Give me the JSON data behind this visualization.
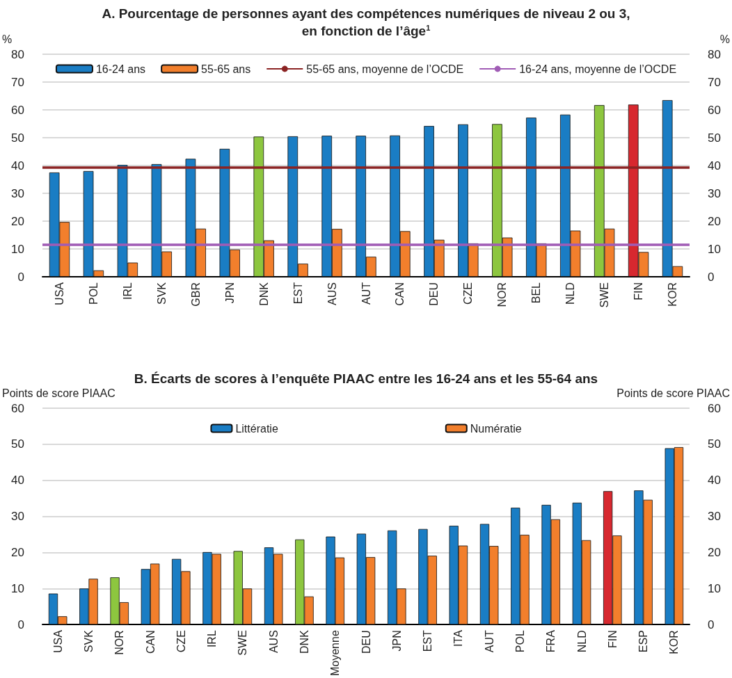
{
  "chart_data": [
    {
      "type": "bar",
      "title": "A. Pourcentage de personnes ayant des compétences numériques de niveau 2 ou 3,\nen fonction de l’âge$^{1}$",
      "ylabel": "%",
      "y2label": "%",
      "categories": [
        "USA",
        "POL",
        "IRL",
        "SVK",
        "GBR",
        "JPN",
        "DNK",
        "EST",
        "AUS",
        "AUT",
        "CAN",
        "DEU",
        "CZE",
        "NOR",
        "BEL",
        "NLD",
        "SWE",
        "FIN",
        "KOR"
      ],
      "series": [
        {
          "name": "16-24 ans",
          "color": "#1a7dc4",
          "colors": [
            "#1a7dc4",
            "#1a7dc4",
            "#1a7dc4",
            "#1a7dc4",
            "#1a7dc4",
            "#1a7dc4",
            "#8dc63f",
            "#1a7dc4",
            "#1a7dc4",
            "#1a7dc4",
            "#1a7dc4",
            "#1a7dc4",
            "#1a7dc4",
            "#8dc63f",
            "#1a7dc4",
            "#1a7dc4",
            "#8dc63f",
            "#d7282f",
            "#1a7dc4"
          ],
          "values": [
            37.5,
            38,
            40.2,
            40.5,
            42.4,
            46,
            50.4,
            50.5,
            50.7,
            50.7,
            50.8,
            54.2,
            54.8,
            54.9,
            57.2,
            58.3,
            61.7,
            61.9,
            63.5
          ]
        },
        {
          "name": "55-65 ans",
          "color": "#f27f2c",
          "values": [
            19.7,
            2.3,
            5.1,
            9.1,
            17.3,
            9.8,
            13.1,
            4.7,
            17.2,
            7.2,
            16.4,
            13.3,
            12,
            14.1,
            12,
            16.6,
            17.3,
            8.9,
            3.8
          ]
        }
      ],
      "ref_lines": [
        {
          "axis": "y",
          "value": 39.2,
          "label": "55-65 ans, moyenne de l’OCDE",
          "color": "#8b2323"
        },
        {
          "axis": "y",
          "value": 11.6,
          "label": "16-24 ans, moyenne de l’OCDE",
          "color": "#a05cb5"
        }
      ],
      "ylim": [
        0,
        80
      ],
      "yticks": [
        0,
        10,
        20,
        30,
        40,
        50,
        60,
        70,
        80
      ],
      "y2lim": [
        0,
        80
      ],
      "y2ticks": [
        0,
        10,
        20,
        30,
        40,
        50,
        60,
        70,
        80
      ],
      "grid": "y",
      "legend": "top"
    },
    {
      "type": "bar",
      "title": "B. Écarts de scores à l’enquête PIAAC entre les 16-24 ans et les 55-64 ans",
      "ylabel": "Points de score PIAAC",
      "y2label": "Points de score PIAAC",
      "categories": [
        "USA",
        "SVK",
        "NOR",
        "CAN",
        "CZE",
        "IRL",
        "SWE",
        "AUS",
        "DNK",
        "Moyenne",
        "DEU",
        "JPN",
        "EST",
        "ITA",
        "AUT",
        "POL",
        "FRA",
        "NLD",
        "FIN",
        "ESP",
        "KOR"
      ],
      "series": [
        {
          "name": "Littératie",
          "color": "#1a7dc4",
          "colors": [
            "#1a7dc4",
            "#1a7dc4",
            "#8dc63f",
            "#1a7dc4",
            "#1a7dc4",
            "#1a7dc4",
            "#8dc63f",
            "#1a7dc4",
            "#8dc63f",
            "#1a7dc4",
            "#1a7dc4",
            "#1a7dc4",
            "#1a7dc4",
            "#1a7dc4",
            "#1a7dc4",
            "#1a7dc4",
            "#1a7dc4",
            "#1a7dc4",
            "#d7282f",
            "#1a7dc4",
            "#1a7dc4"
          ],
          "values": [
            8.6,
            10,
            13.1,
            15.4,
            18.2,
            20.1,
            20.4,
            21.4,
            23.6,
            24.4,
            25.2,
            26.1,
            26.5,
            27.4,
            27.9,
            32.4,
            33.2,
            33.8,
            37,
            37.2,
            48.9
          ]
        },
        {
          "name": "Numératie",
          "color": "#f27f2c",
          "values": [
            2.3,
            12.7,
            6.2,
            16.9,
            14.8,
            19.6,
            10,
            19.6,
            7.8,
            18.6,
            18.7,
            10,
            19.1,
            21.9,
            21.8,
            24.9,
            29.2,
            23.4,
            24.7,
            34.6,
            49.2
          ]
        }
      ],
      "ylim": [
        0,
        60
      ],
      "yticks": [
        0,
        10,
        20,
        30,
        40,
        50,
        60
      ],
      "y2lim": [
        0,
        60
      ],
      "y2ticks": [
        0,
        10,
        20,
        30,
        40,
        50,
        60
      ],
      "grid": "y",
      "legend": "top"
    }
  ]
}
